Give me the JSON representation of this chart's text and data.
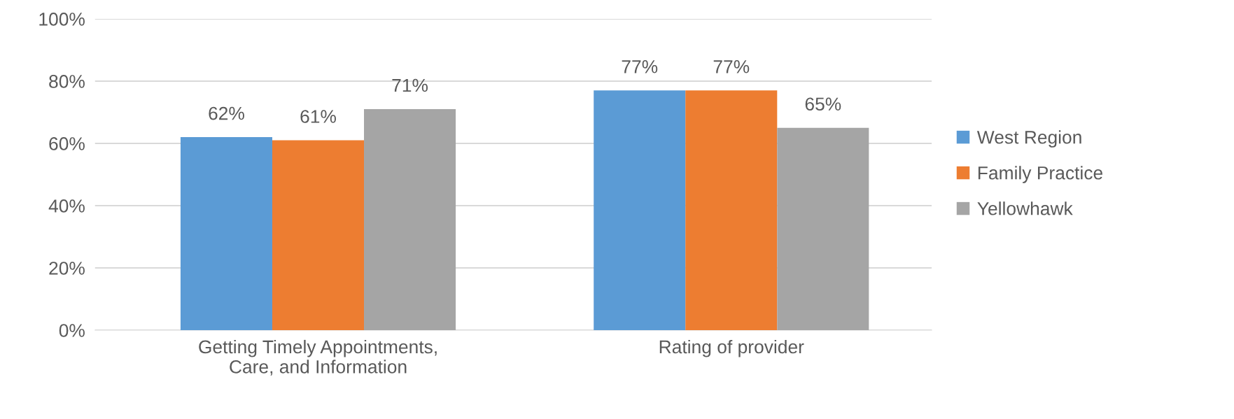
{
  "chart_data": {
    "type": "bar",
    "categories": [
      "Getting Timely Appointments,\nCare, and Information",
      "Rating of provider"
    ],
    "series": [
      {
        "name": "West Region",
        "color": "#5b9bd5",
        "values": [
          62,
          77
        ],
        "value_labels": [
          "62%",
          "77%"
        ]
      },
      {
        "name": "Family Practice",
        "color": "#ed7d31",
        "values": [
          61,
          77
        ],
        "value_labels": [
          "61%",
          "77%"
        ]
      },
      {
        "name": "Yellowhawk",
        "color": "#a5a5a5",
        "values": [
          71,
          65
        ],
        "value_labels": [
          "71%",
          "65%"
        ]
      }
    ],
    "ylim": [
      0,
      100
    ],
    "yticks": [
      {
        "value": 0,
        "label": "0%"
      },
      {
        "value": 20,
        "label": "20%"
      },
      {
        "value": 40,
        "label": "40%"
      },
      {
        "value": 60,
        "label": "60%"
      },
      {
        "value": 80,
        "label": "80%"
      },
      {
        "value": 100,
        "label": "100%"
      }
    ],
    "grid": "y",
    "legend": "right"
  }
}
